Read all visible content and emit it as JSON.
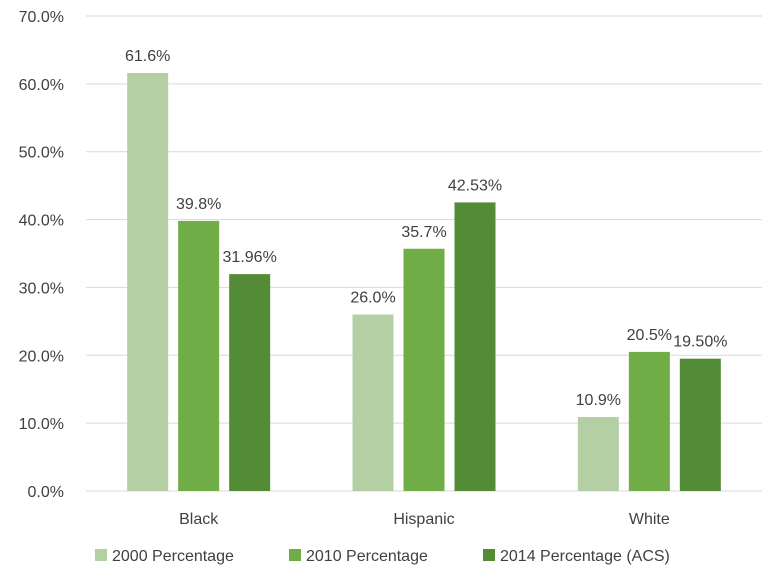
{
  "chart_data": {
    "type": "bar",
    "categories": [
      "Black",
      "Hispanic",
      "White"
    ],
    "series": [
      {
        "name": "2000 Percentage",
        "values": [
          61.6,
          26.0,
          10.9
        ],
        "labels": [
          "61.6%",
          "26.0%",
          "10.9%"
        ],
        "color": "#b4cfa4"
      },
      {
        "name": "2010 Percentage",
        "values": [
          39.8,
          35.7,
          20.5
        ],
        "labels": [
          "39.8%",
          "35.7%",
          "20.5%"
        ],
        "color": "#70ad47"
      },
      {
        "name": "2014 Percentage (ACS)",
        "values": [
          31.96,
          42.53,
          19.5
        ],
        "labels": [
          "31.96%",
          "42.53%",
          "19.50%"
        ],
        "color": "#548b37"
      }
    ],
    "y_ticks": [
      "0.0%",
      "10.0%",
      "20.0%",
      "30.0%",
      "40.0%",
      "50.0%",
      "60.0%",
      "70.0%"
    ],
    "ylim": [
      0,
      70
    ],
    "grid": true,
    "grid_color": "#d9d9d9",
    "legend_position": "bottom"
  }
}
